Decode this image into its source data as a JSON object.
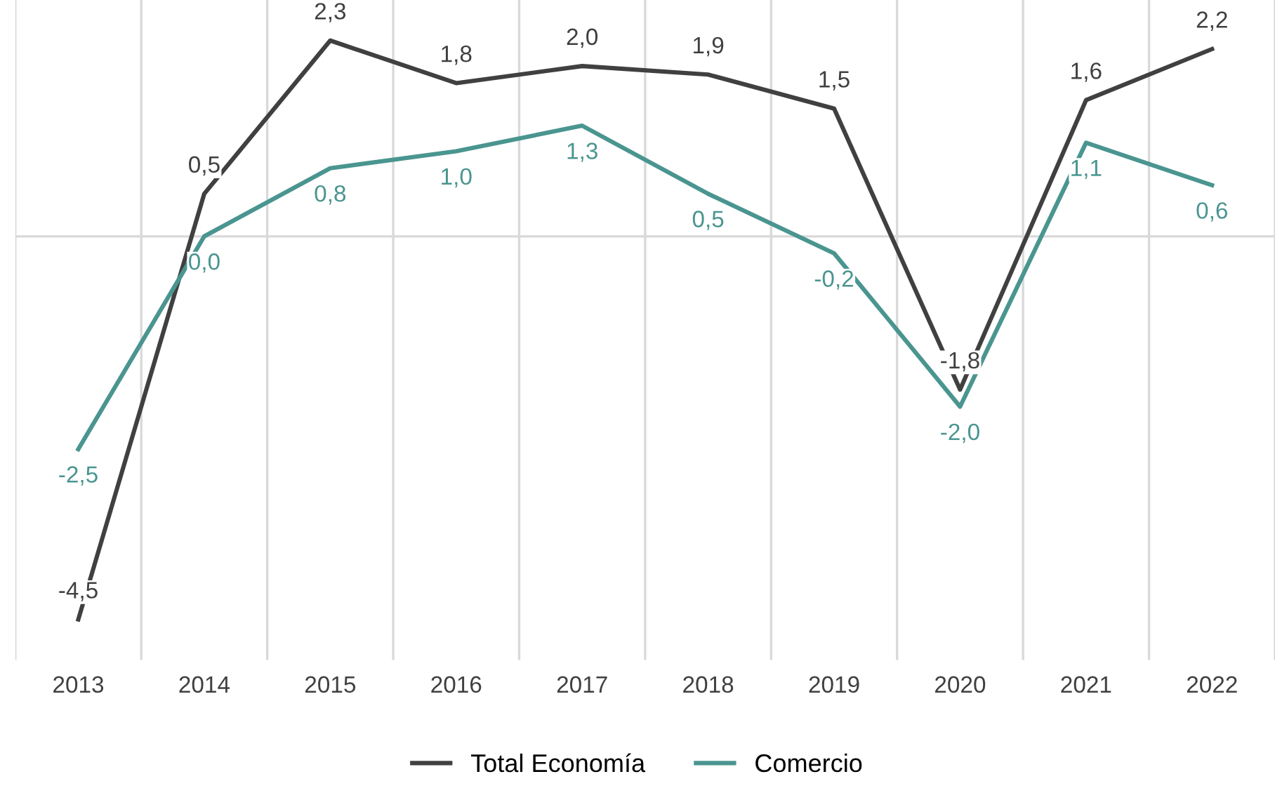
{
  "chart_data": {
    "type": "line",
    "categories": [
      "2013",
      "2014",
      "2015",
      "2016",
      "2017",
      "2018",
      "2019",
      "2020",
      "2021",
      "2022"
    ],
    "series": [
      {
        "name": "Total Economía",
        "color": "#404040",
        "values": [
          -4.5,
          0.5,
          2.3,
          1.8,
          2.0,
          1.9,
          1.5,
          -1.8,
          1.6,
          2.2
        ],
        "value_labels": [
          "-4,5",
          "0,5",
          "2,3",
          "1,8",
          "2,0",
          "1,9",
          "1,5",
          "-1,8",
          "1,6",
          "2,2"
        ]
      },
      {
        "name": "Comercio",
        "color": "#4a9590",
        "values": [
          -2.5,
          0.0,
          0.8,
          1.0,
          1.3,
          0.5,
          -0.2,
          -2.0,
          1.1,
          0.6
        ],
        "value_labels": [
          "-2,5",
          "0,0",
          "0,8",
          "1,0",
          "1,3",
          "0,5",
          "-0,2",
          "-2,0",
          "1,1",
          "0,6"
        ]
      }
    ],
    "tick_labels": "x",
    "grid": "x",
    "legend": "bottom",
    "marker": "none",
    "line_style": "solid"
  }
}
